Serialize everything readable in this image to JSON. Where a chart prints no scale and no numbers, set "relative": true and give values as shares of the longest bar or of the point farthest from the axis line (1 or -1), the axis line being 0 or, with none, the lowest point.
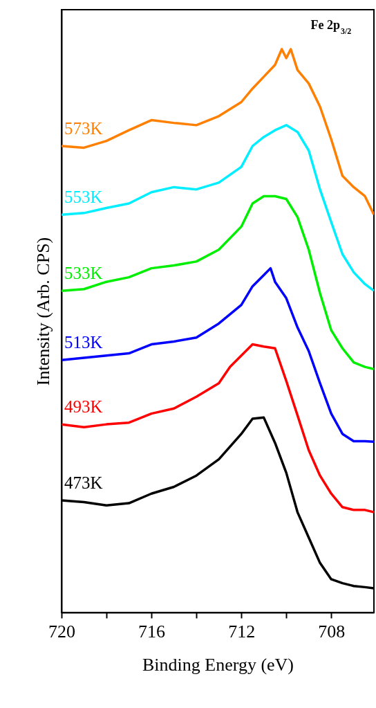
{
  "chart_data": {
    "type": "line",
    "relative": true,
    "xlabel": "Binding Energy (eV)",
    "ylabel": "Intensity (Arb. CPS)",
    "annotations": [
      "Fe 2p$_{3/2}$"
    ],
    "xlim": [
      720,
      706.1
    ],
    "xticks": [
      720,
      {
        "value": 718,
        "label": null
      },
      716,
      {
        "value": 714,
        "label": null
      },
      712,
      {
        "value": 710,
        "label": null
      },
      708
    ],
    "legend": false,
    "grid": false,
    "marker": "none",
    "line_style": "solid",
    "series": [
      {
        "name": "473K",
        "color": "#000000",
        "x": [
          720,
          719,
          718,
          717,
          716,
          715,
          714,
          713,
          712,
          711.5,
          711,
          710.5,
          710,
          709.5,
          709,
          708.5,
          708,
          707.5,
          707,
          706.5,
          706.1
        ],
        "values": [
          0.199,
          0.196,
          0.19,
          0.194,
          0.211,
          0.223,
          0.243,
          0.272,
          0.317,
          0.344,
          0.346,
          0.301,
          0.248,
          0.178,
          0.133,
          0.088,
          0.059,
          0.052,
          0.047,
          0.045,
          0.043
        ]
      },
      {
        "name": "493K",
        "color": "#ff0000",
        "x": [
          720,
          719,
          718,
          717,
          716,
          715,
          714,
          713,
          712.5,
          712,
          711.5,
          711,
          710.5,
          710,
          709.5,
          709,
          708.5,
          708,
          707.5,
          707,
          706.5,
          706.1
        ],
        "values": [
          0.334,
          0.329,
          0.334,
          0.337,
          0.353,
          0.362,
          0.383,
          0.407,
          0.436,
          0.456,
          0.476,
          0.472,
          0.469,
          0.411,
          0.35,
          0.288,
          0.243,
          0.211,
          0.187,
          0.182,
          0.182,
          0.178
        ]
      },
      {
        "name": "513K",
        "color": "#0000ff",
        "x": [
          720,
          719,
          718,
          717,
          716,
          715,
          714,
          713,
          712,
          711.5,
          711,
          710.7,
          710.5,
          710,
          709.5,
          709,
          708.5,
          708,
          707.5,
          707,
          706.5,
          706.1
        ],
        "values": [
          0.448,
          0.452,
          0.456,
          0.46,
          0.476,
          0.481,
          0.488,
          0.513,
          0.546,
          0.579,
          0.599,
          0.611,
          0.587,
          0.558,
          0.506,
          0.464,
          0.407,
          0.353,
          0.317,
          0.304,
          0.304,
          0.303
        ]
      },
      {
        "name": "533K",
        "color": "#00ee00",
        "x": [
          720,
          719,
          718,
          717,
          716,
          715,
          714,
          713,
          712,
          711.5,
          711,
          710.5,
          710,
          709.5,
          709,
          708.5,
          708,
          707.5,
          707,
          706.5,
          706.1
        ],
        "values": [
          0.571,
          0.574,
          0.587,
          0.595,
          0.611,
          0.616,
          0.623,
          0.644,
          0.685,
          0.726,
          0.739,
          0.739,
          0.734,
          0.702,
          0.644,
          0.567,
          0.501,
          0.469,
          0.444,
          0.436,
          0.432
        ]
      },
      {
        "name": "553K",
        "color": "#00eeff",
        "x": [
          720,
          719,
          718,
          717,
          716,
          715,
          714,
          713,
          712,
          711.5,
          711,
          710.5,
          710,
          709.5,
          709,
          708.5,
          708,
          707.5,
          707,
          706.5,
          706.1
        ],
        "values": [
          0.706,
          0.709,
          0.718,
          0.726,
          0.746,
          0.755,
          0.751,
          0.763,
          0.791,
          0.828,
          0.844,
          0.856,
          0.865,
          0.853,
          0.82,
          0.751,
          0.693,
          0.636,
          0.604,
          0.583,
          0.571
        ]
      },
      {
        "name": "573K",
        "color": "#ff8000",
        "x": [
          720,
          719,
          718,
          717,
          716,
          715,
          714,
          713,
          712,
          711.5,
          711,
          710.5,
          710.2,
          710,
          709.8,
          709.5,
          709,
          708.5,
          708,
          707.5,
          707,
          706.5,
          706.1
        ],
        "values": [
          0.828,
          0.825,
          0.837,
          0.856,
          0.874,
          0.869,
          0.865,
          0.881,
          0.906,
          0.93,
          0.951,
          0.972,
          1,
          0.984,
          1,
          0.963,
          0.939,
          0.898,
          0.84,
          0.775,
          0.755,
          0.739,
          0.706
        ]
      }
    ]
  }
}
